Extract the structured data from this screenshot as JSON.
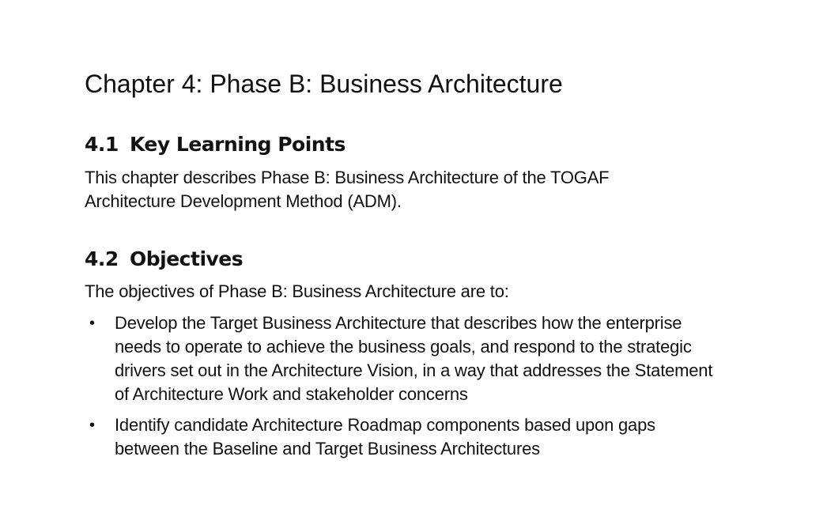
{
  "chapter_title": "Chapter 4: Phase B: Business Architecture",
  "sections": [
    {
      "number": "4.1",
      "heading": "Key Learning Points",
      "paragraph": "This chapter describes Phase B: Business Architecture of the TOGAF Architecture Development Method (ADM)."
    },
    {
      "number": "4.2",
      "heading": "Objectives",
      "paragraph": "The objectives of Phase B: Business Architecture are to:",
      "bullets": [
        "Develop the Target Business Architecture that describes how the enterprise needs to operate to achieve the business goals, and respond to the strategic drivers set out in the Architecture Vision, in a way that addresses the Statement of Architecture Work and stakeholder concerns",
        "Identify candidate Architecture Roadmap components based upon gaps between the Baseline and Target Business Architectures"
      ]
    }
  ],
  "bullet_glyph": "•"
}
